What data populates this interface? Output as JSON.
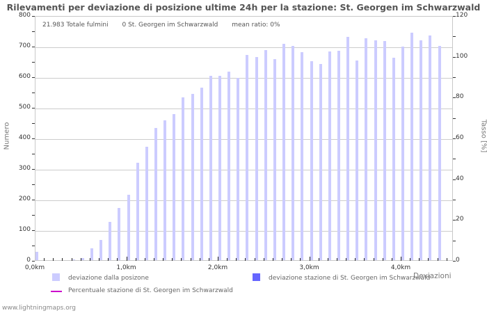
{
  "title": "Rilevamenti per deviazione di posizione ultime 24h per la stazione: St. Georgen im Schwarzwald",
  "info": {
    "total": "21.983 Totale fulmini",
    "station": "0 St. Georgen im Schwarzwald",
    "ratio": "mean ratio: 0%"
  },
  "axes": {
    "y_left_label": "Numero",
    "y_right_label": "Tasso [%]",
    "x_label": "Deviazioni",
    "y_left_ticks": [
      "0",
      "100",
      "200",
      "300",
      "400",
      "500",
      "600",
      "700",
      "800"
    ],
    "y_right_ticks": [
      "0",
      "20",
      "40",
      "60",
      "80",
      "100",
      "120"
    ],
    "x_ticks": [
      "0,0km",
      "1,0km",
      "2,0km",
      "3,0km",
      "4,0km"
    ]
  },
  "legend": {
    "item1": "deviazione dalla posizone",
    "item2": "deviazione stazione di St. Georgen im Schwarzwald",
    "item3": "Percentuale stazione di St. Georgen im Schwarzwald"
  },
  "colors": {
    "all_bars": "#ccccff",
    "station_bars": "#6666ff",
    "percent_line": "#cc00cc",
    "grid": "#cccccc"
  },
  "footer": "www.lightningmaps.org",
  "chart_data": {
    "type": "bar",
    "title": "Rilevamenti per deviazione di posizione ultime 24h per la stazione: St. Georgen im Schwarzwald",
    "xlabel": "Deviazioni",
    "ylabel": "Numero",
    "y2label": "Tasso [%]",
    "ylim": [
      0,
      800
    ],
    "y2lim": [
      0,
      120
    ],
    "grid": true,
    "legend_position": "bottom",
    "categories_km": [
      0.0,
      0.1,
      0.2,
      0.3,
      0.4,
      0.5,
      0.6,
      0.7,
      0.8,
      0.9,
      1.0,
      1.1,
      1.2,
      1.3,
      1.4,
      1.5,
      1.6,
      1.7,
      1.8,
      1.9,
      2.0,
      2.1,
      2.2,
      2.3,
      2.4,
      2.5,
      2.6,
      2.7,
      2.8,
      2.9,
      3.0,
      3.1,
      3.2,
      3.3,
      3.4,
      3.5,
      3.6,
      3.7,
      3.8,
      3.9,
      4.0,
      4.1,
      4.2,
      4.3,
      4.4
    ],
    "series": [
      {
        "name": "deviazione dalla posizone",
        "values": [
          27,
          0,
          0,
          0,
          2,
          7,
          39,
          67,
          125,
          170,
          214,
          318,
          370,
          432,
          457,
          477,
          532,
          543,
          564,
          602,
          602,
          616,
          595,
          670,
          663,
          686,
          656,
          706,
          699,
          679,
          649,
          640,
          681,
          684,
          729,
          652,
          725,
          718,
          716,
          661,
          698,
          743,
          718,
          734,
          700
        ]
      },
      {
        "name": "deviazione stazione di St. Georgen im Schwarzwald",
        "values": [
          0,
          0,
          0,
          0,
          0,
          0,
          0,
          0,
          0,
          0,
          0,
          0,
          0,
          0,
          0,
          0,
          0,
          0,
          0,
          0,
          0,
          0,
          0,
          0,
          0,
          0,
          0,
          0,
          0,
          0,
          0,
          0,
          0,
          0,
          0,
          0,
          0,
          0,
          0,
          0,
          0,
          0,
          0,
          0,
          0
        ]
      },
      {
        "name": "Percentuale stazione di St. Georgen im Schwarzwald",
        "type": "line",
        "axis": "right",
        "values": []
      }
    ]
  }
}
